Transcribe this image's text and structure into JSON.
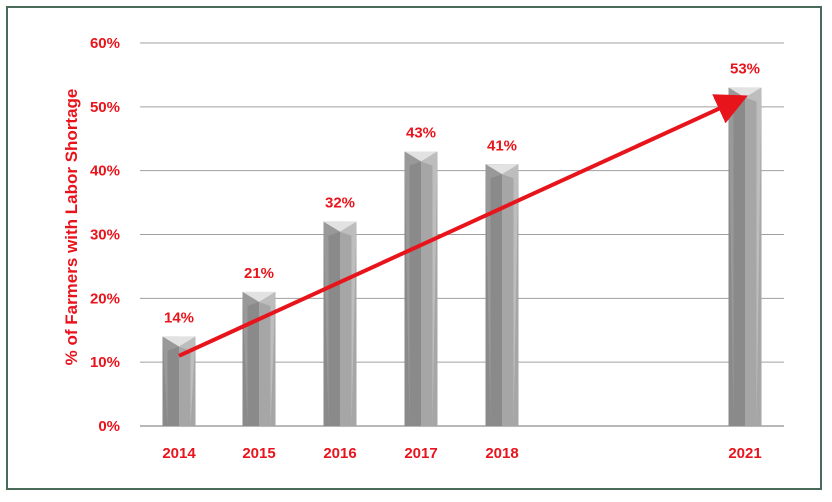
{
  "chart_data": {
    "type": "bar",
    "title": "",
    "xlabel": "",
    "ylabel": "% of Farmers with Labor Shortage",
    "categories": [
      "2014",
      "2015",
      "2016",
      "2017",
      "2018",
      "2021"
    ],
    "values": [
      14,
      21,
      32,
      43,
      41,
      53
    ],
    "data_labels": [
      "14%",
      "21%",
      "32%",
      "43%",
      "41%",
      "53%"
    ],
    "x_axis": "years (gap 2019–2020 not shown)",
    "ylim": [
      0,
      60
    ],
    "yticks": [
      0,
      10,
      20,
      30,
      40,
      50,
      60
    ],
    "ytick_labels": [
      "0%",
      "10%",
      "20%",
      "30%",
      "40%",
      "50%",
      "60%"
    ],
    "grid": true,
    "legend": "none",
    "trend_arrow": {
      "from_category": "2014",
      "from_value": 11,
      "to_category": "2021",
      "to_value": 51
    },
    "colors": {
      "bar": "#a6a6a6",
      "bar_dark": "#8a8a8a",
      "bar_light": "#bdbdbd",
      "text": "#e8141c",
      "arrow": "#e8141c",
      "grid": "#a0a0a0"
    }
  }
}
